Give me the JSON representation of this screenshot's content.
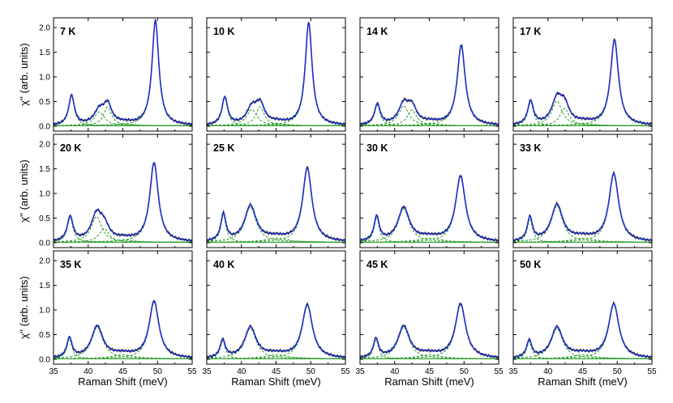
{
  "chart_data": {
    "type": "line",
    "layout": "3x4 panel grid",
    "xlabel": "Raman Shift (meV)",
    "ylabel": "χ'' (arb. units)",
    "xlim": [
      35,
      55
    ],
    "ylim": [
      -0.1,
      2.2
    ],
    "xticks": [
      35,
      40,
      45,
      50,
      55
    ],
    "yticks": [
      0.0,
      0.5,
      1.0,
      1.5,
      2.0
    ],
    "xtick_labels": [
      "35",
      "40",
      "45",
      "50",
      "55"
    ],
    "ytick_labels": [
      "0.0",
      "0.5",
      "1.0",
      "1.5",
      "2.0"
    ],
    "series_types": [
      "measured data (black)",
      "total Lorentzian fit (blue)",
      "fit components (green dashed)",
      "background (green)"
    ],
    "colors": {
      "data": "#111111",
      "fit": "#1f2fc8",
      "component": "#2a9d2a",
      "background": "#2a9d2a"
    },
    "panels": [
      {
        "temperature": "7 K",
        "peaks": [
          {
            "center": 37.6,
            "height": 0.6,
            "width": 0.5
          },
          {
            "center": 41.6,
            "height": 0.28,
            "width": 0.9
          },
          {
            "center": 42.8,
            "height": 0.38,
            "width": 0.7
          },
          {
            "center": 45.2,
            "height": 0.04,
            "width": 1.5
          },
          {
            "center": 49.7,
            "height": 2.12,
            "width": 0.6
          }
        ]
      },
      {
        "temperature": "10 K",
        "peaks": [
          {
            "center": 37.6,
            "height": 0.56,
            "width": 0.5
          },
          {
            "center": 41.5,
            "height": 0.33,
            "width": 0.9
          },
          {
            "center": 42.7,
            "height": 0.38,
            "width": 0.75
          },
          {
            "center": 45.2,
            "height": 0.05,
            "width": 1.5
          },
          {
            "center": 49.7,
            "height": 2.08,
            "width": 0.6
          }
        ]
      },
      {
        "temperature": "14 K",
        "peaks": [
          {
            "center": 37.5,
            "height": 0.42,
            "width": 0.5
          },
          {
            "center": 41.3,
            "height": 0.4,
            "width": 0.9
          },
          {
            "center": 42.5,
            "height": 0.32,
            "width": 0.8
          },
          {
            "center": 45.2,
            "height": 0.05,
            "width": 1.5
          },
          {
            "center": 49.6,
            "height": 1.62,
            "width": 0.7
          }
        ]
      },
      {
        "temperature": "17 K",
        "peaks": [
          {
            "center": 37.5,
            "height": 0.48,
            "width": 0.5
          },
          {
            "center": 41.3,
            "height": 0.5,
            "width": 0.9
          },
          {
            "center": 42.4,
            "height": 0.35,
            "width": 0.8
          },
          {
            "center": 45.2,
            "height": 0.05,
            "width": 1.5
          },
          {
            "center": 49.6,
            "height": 1.73,
            "width": 0.7
          }
        ]
      },
      {
        "temperature": "20 K",
        "peaks": [
          {
            "center": 37.4,
            "height": 0.5,
            "width": 0.5
          },
          {
            "center": 41.2,
            "height": 0.52,
            "width": 0.9
          },
          {
            "center": 42.3,
            "height": 0.28,
            "width": 0.85
          },
          {
            "center": 45.2,
            "height": 0.05,
            "width": 1.5
          },
          {
            "center": 49.5,
            "height": 1.6,
            "width": 0.75
          }
        ]
      },
      {
        "temperature": "25 K",
        "peaks": [
          {
            "center": 37.4,
            "height": 0.55,
            "width": 0.45
          },
          {
            "center": 41.3,
            "height": 0.72,
            "width": 1.0
          },
          {
            "center": 45.0,
            "height": 0.08,
            "width": 2.0
          },
          {
            "center": 49.5,
            "height": 1.49,
            "width": 0.8
          }
        ]
      },
      {
        "temperature": "30 K",
        "peaks": [
          {
            "center": 37.4,
            "height": 0.5,
            "width": 0.45
          },
          {
            "center": 41.3,
            "height": 0.68,
            "width": 1.0
          },
          {
            "center": 45.0,
            "height": 0.08,
            "width": 2.0
          },
          {
            "center": 49.5,
            "height": 1.33,
            "width": 0.85
          }
        ]
      },
      {
        "temperature": "33 K",
        "peaks": [
          {
            "center": 37.4,
            "height": 0.48,
            "width": 0.45
          },
          {
            "center": 41.3,
            "height": 0.74,
            "width": 1.0
          },
          {
            "center": 45.0,
            "height": 0.08,
            "width": 2.0
          },
          {
            "center": 49.5,
            "height": 1.37,
            "width": 0.85
          }
        ]
      },
      {
        "temperature": "35 K",
        "peaks": [
          {
            "center": 37.3,
            "height": 0.4,
            "width": 0.45
          },
          {
            "center": 41.3,
            "height": 0.64,
            "width": 1.0
          },
          {
            "center": 45.0,
            "height": 0.08,
            "width": 2.0
          },
          {
            "center": 49.5,
            "height": 1.15,
            "width": 0.85
          }
        ]
      },
      {
        "temperature": "40 K",
        "peaks": [
          {
            "center": 37.3,
            "height": 0.36,
            "width": 0.45
          },
          {
            "center": 41.3,
            "height": 0.62,
            "width": 1.0
          },
          {
            "center": 45.0,
            "height": 0.08,
            "width": 2.0
          },
          {
            "center": 49.5,
            "height": 1.08,
            "width": 0.9
          }
        ]
      },
      {
        "temperature": "45 K",
        "peaks": [
          {
            "center": 37.3,
            "height": 0.38,
            "width": 0.45
          },
          {
            "center": 41.3,
            "height": 0.64,
            "width": 1.0
          },
          {
            "center": 45.0,
            "height": 0.08,
            "width": 2.0
          },
          {
            "center": 49.5,
            "height": 1.1,
            "width": 0.9
          }
        ]
      },
      {
        "temperature": "50 K",
        "peaks": [
          {
            "center": 37.3,
            "height": 0.35,
            "width": 0.45
          },
          {
            "center": 41.3,
            "height": 0.62,
            "width": 1.0
          },
          {
            "center": 45.0,
            "height": 0.08,
            "width": 2.0
          },
          {
            "center": 49.5,
            "height": 1.1,
            "width": 0.9
          }
        ]
      }
    ]
  }
}
